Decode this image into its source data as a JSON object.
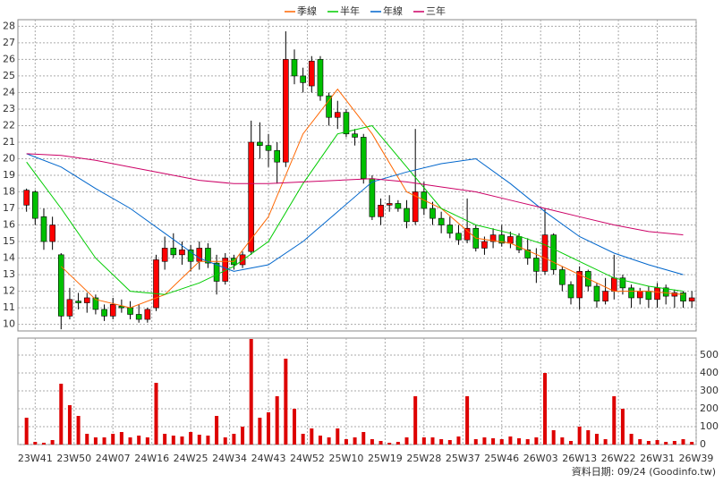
{
  "chart_data": {
    "type": "candlestick",
    "grid": true,
    "up_color": "#ff0000",
    "down_color": "#00c000",
    "x": [
      -2,
      0,
      2,
      4,
      6,
      8,
      10,
      12,
      14,
      16,
      18,
      20,
      22,
      24,
      26,
      28,
      30,
      32,
      34,
      36,
      38,
      40,
      42,
      44,
      46,
      48,
      50,
      52,
      54,
      56,
      58,
      60,
      62,
      64,
      66,
      68,
      70,
      72,
      74,
      76,
      78,
      80,
      82,
      84,
      86,
      88,
      90,
      92,
      94,
      96,
      98,
      100,
      102,
      104,
      106,
      108,
      110,
      112,
      114,
      116,
      118,
      120,
      122,
      124,
      126,
      128,
      130,
      132,
      134,
      136,
      138,
      140,
      142,
      144,
      146,
      148,
      150,
      152
    ],
    "open": [
      17.2,
      18,
      16.5,
      15,
      14.2,
      10.5,
      11.4,
      11.3,
      11.6,
      10.9,
      10.5,
      11.1,
      11,
      10.6,
      10.3,
      11,
      13.8,
      14.6,
      14.2,
      14.5,
      13.8,
      14.6,
      13.7,
      12.6,
      14,
      13.6,
      14.4,
      21,
      20.8,
      20.5,
      19.8,
      26,
      25,
      24.4,
      26,
      23.8,
      22.5,
      22.8,
      21.5,
      21.3,
      18.8,
      16.5,
      17.2,
      17.3,
      17,
      16.2,
      18,
      17,
      16.4,
      16,
      15.5,
      15.1,
      15.8,
      14.6,
      15,
      15.4,
      14.9,
      15.3,
      14.5,
      14,
      13.2,
      15.4,
      13.3,
      12.4,
      11.6,
      13.2,
      12.3,
      11.4,
      12,
      12.8,
      12.2,
      11.6,
      12,
      11.5,
      12.2,
      11.7,
      11.9,
      11.4
    ],
    "high": [
      18.2,
      18.1,
      17,
      16.5,
      14.3,
      12.2,
      11.9,
      11.9,
      11.8,
      11.2,
      11.6,
      11.5,
      11.4,
      11.2,
      11,
      14.2,
      15.3,
      15.5,
      15,
      14.8,
      15,
      14.9,
      14.2,
      14.3,
      14.2,
      14.4,
      22.3,
      22.2,
      21.5,
      21,
      27.7,
      26.6,
      25.5,
      26.2,
      26.2,
      24,
      23.5,
      23,
      21.8,
      21.5,
      19,
      17.6,
      17.8,
      17.5,
      17.5,
      21.8,
      18.6,
      17.4,
      16.8,
      16.5,
      16,
      17.6,
      16,
      15.3,
      15.8,
      16,
      15.6,
      15.5,
      15.2,
      14.6,
      17,
      15.5,
      13.5,
      12.6,
      13.5,
      13.3,
      12.5,
      12.8,
      14.2,
      13,
      12.4,
      12.2,
      12.3,
      12.5,
      12.4,
      12.1,
      12,
      12
    ],
    "low": [
      16.8,
      16,
      14.5,
      14.5,
      9.7,
      10.3,
      10.9,
      10.7,
      10.6,
      10.2,
      10.3,
      10.7,
      10.3,
      10.1,
      10.1,
      10.8,
      13.3,
      14,
      13.6,
      13.2,
      13.3,
      13.4,
      11.8,
      12.4,
      13.3,
      13.4,
      14.2,
      20,
      19.5,
      18.5,
      19.5,
      24.5,
      24,
      24,
      23.5,
      22,
      21.8,
      21.3,
      20.8,
      18.5,
      16.3,
      16,
      16.8,
      16.8,
      15.8,
      16,
      16.6,
      16,
      15.5,
      15.2,
      14.8,
      14.9,
      14.4,
      14.2,
      14.6,
      14.7,
      14.6,
      14.3,
      13.6,
      12.5,
      13,
      13,
      12,
      11.2,
      10.9,
      12,
      11,
      11.2,
      11.5,
      11.8,
      11,
      11.2,
      11,
      11,
      11.2,
      11,
      11,
      11
    ],
    "close": [
      18.1,
      16.4,
      15,
      16,
      10.5,
      11.5,
      11.3,
      11.6,
      10.9,
      10.5,
      11.2,
      11,
      10.6,
      10.3,
      10.9,
      13.9,
      14.6,
      14.2,
      14.5,
      13.8,
      14.6,
      13.7,
      12.6,
      14,
      13.6,
      14.2,
      21,
      20.8,
      20.5,
      19.8,
      26,
      25,
      24.6,
      25.9,
      23.8,
      22.5,
      22.8,
      21.5,
      21.3,
      18.8,
      16.5,
      17.2,
      17.3,
      17,
      16.2,
      18,
      17,
      16.4,
      16,
      15.5,
      15.1,
      15.8,
      14.6,
      15,
      15.4,
      14.9,
      15.3,
      14.5,
      14,
      13.2,
      15.4,
      13.3,
      12.4,
      11.6,
      13.2,
      12.3,
      11.4,
      12,
      12.8,
      12.2,
      11.6,
      12,
      11.5,
      12.2,
      11.7,
      11.9,
      11.4,
      11.6
    ],
    "xlim": [
      -4,
      153
    ],
    "xticks": [
      {
        "value": 0,
        "label": "23W41"
      },
      {
        "value": 9,
        "label": "23W50"
      },
      {
        "value": 18,
        "label": "24W07"
      },
      {
        "value": 27,
        "label": "24W16"
      },
      {
        "value": 36,
        "label": "24W25"
      },
      {
        "value": 45,
        "label": "24W34"
      },
      {
        "value": 54,
        "label": "24W43"
      },
      {
        "value": 63,
        "label": "24W52"
      },
      {
        "value": 72,
        "label": "25W10"
      },
      {
        "value": 81,
        "label": "25W19"
      },
      {
        "value": 90,
        "label": "25W28"
      },
      {
        "value": 99,
        "label": "25W37"
      },
      {
        "value": 108,
        "label": "25W46"
      },
      {
        "value": 117,
        "label": "26W03"
      },
      {
        "value": 126,
        "label": "26W13"
      },
      {
        "value": 135,
        "label": "26W22"
      },
      {
        "value": 144,
        "label": "26W31"
      },
      {
        "value": 153,
        "label": "26W39"
      }
    ],
    "ylim": [
      9.6,
      28.4
    ],
    "yticks": [
      10,
      11,
      12,
      13,
      14,
      15,
      16,
      17,
      18,
      19,
      20,
      21,
      22,
      23,
      24,
      25,
      26,
      27,
      28
    ],
    "series": [
      {
        "name": "季線",
        "color": "#ff6600",
        "x": [
          -2,
          6,
          14,
          22,
          30,
          38,
          46,
          54,
          62,
          70,
          78,
          86,
          94,
          102,
          110,
          118,
          126,
          134,
          142,
          150
        ],
        "values": [
          null,
          13.5,
          11.5,
          11,
          11.8,
          13.8,
          13.8,
          16.5,
          21.5,
          24.2,
          21.5,
          18,
          17,
          15.2,
          14.9,
          14,
          13,
          12,
          12,
          11.8
        ]
      },
      {
        "name": "半年",
        "color": "#00cc00",
        "x": [
          -2,
          6,
          14,
          22,
          30,
          38,
          46,
          54,
          62,
          70,
          78,
          86,
          94,
          102,
          110,
          118,
          126,
          134,
          142,
          150
        ],
        "values": [
          19.8,
          17,
          14,
          12,
          11.8,
          12.5,
          13.5,
          15,
          18.5,
          21.5,
          22,
          19.5,
          17,
          16,
          15.5,
          14.8,
          13.8,
          12.8,
          12.3,
          12
        ]
      },
      {
        "name": "年線",
        "color": "#0066cc",
        "x": [
          -2,
          6,
          14,
          22,
          30,
          38,
          46,
          54,
          62,
          70,
          78,
          86,
          94,
          102,
          110,
          118,
          126,
          134,
          142,
          150
        ],
        "values": [
          20.3,
          19.5,
          18.2,
          17,
          15.5,
          14,
          13.2,
          13.6,
          15,
          16.8,
          18.6,
          19.2,
          19.7,
          20,
          18.5,
          16.8,
          15.3,
          14.3,
          13.6,
          13
        ]
      },
      {
        "name": "三年",
        "color": "#cc0066",
        "x": [
          -2,
          6,
          14,
          22,
          30,
          38,
          46,
          54,
          62,
          70,
          78,
          86,
          94,
          102,
          110,
          118,
          126,
          134,
          142,
          150
        ],
        "values": [
          20.3,
          20.2,
          19.9,
          19.5,
          19.1,
          18.7,
          18.5,
          18.5,
          18.6,
          18.7,
          18.8,
          18.6,
          18.3,
          18,
          17.5,
          17,
          16.5,
          16,
          15.6,
          15.4
        ]
      }
    ],
    "volume": {
      "color": "#dd0000",
      "ylim": [
        0,
        595
      ],
      "yticks": [
        0,
        100,
        200,
        300,
        400,
        500
      ],
      "values": [
        150,
        15,
        10,
        25,
        340,
        220,
        160,
        60,
        40,
        40,
        60,
        70,
        40,
        50,
        40,
        345,
        60,
        50,
        45,
        70,
        55,
        50,
        160,
        40,
        60,
        100,
        590,
        150,
        180,
        270,
        480,
        200,
        60,
        90,
        50,
        40,
        90,
        30,
        40,
        70,
        30,
        20,
        10,
        15,
        40,
        270,
        40,
        40,
        30,
        25,
        45,
        270,
        30,
        40,
        35,
        30,
        45,
        35,
        30,
        40,
        400,
        80,
        40,
        20,
        100,
        80,
        60,
        30,
        270,
        200,
        60,
        30,
        20,
        25,
        15,
        20,
        30,
        15
      ]
    },
    "footer": "資料日期: 09/24  (Goodinfo.tw)"
  }
}
